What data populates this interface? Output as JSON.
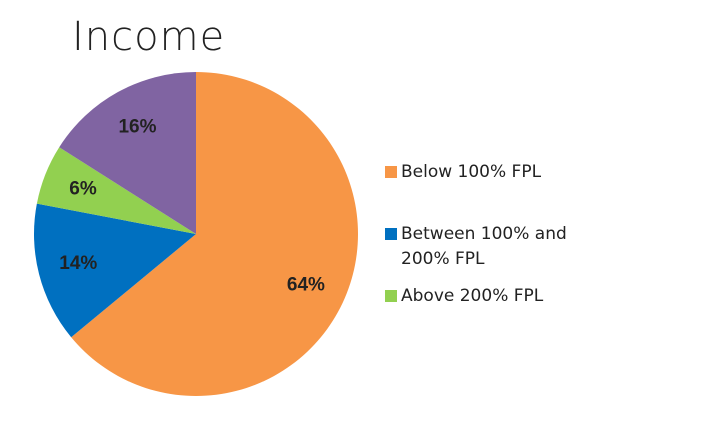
{
  "chart_data": {
    "type": "pie",
    "title": "Income",
    "categories": [
      "Below 100% FPL",
      "Between 100% and 200% FPL",
      "Above 200% FPL",
      null
    ],
    "values": [
      64,
      14,
      6,
      16
    ],
    "value_labels": [
      "64%",
      "14%",
      "6%",
      "16%"
    ],
    "colors": [
      "#f79646",
      "#0070c0",
      "#92d050",
      "#8064a2"
    ]
  }
}
